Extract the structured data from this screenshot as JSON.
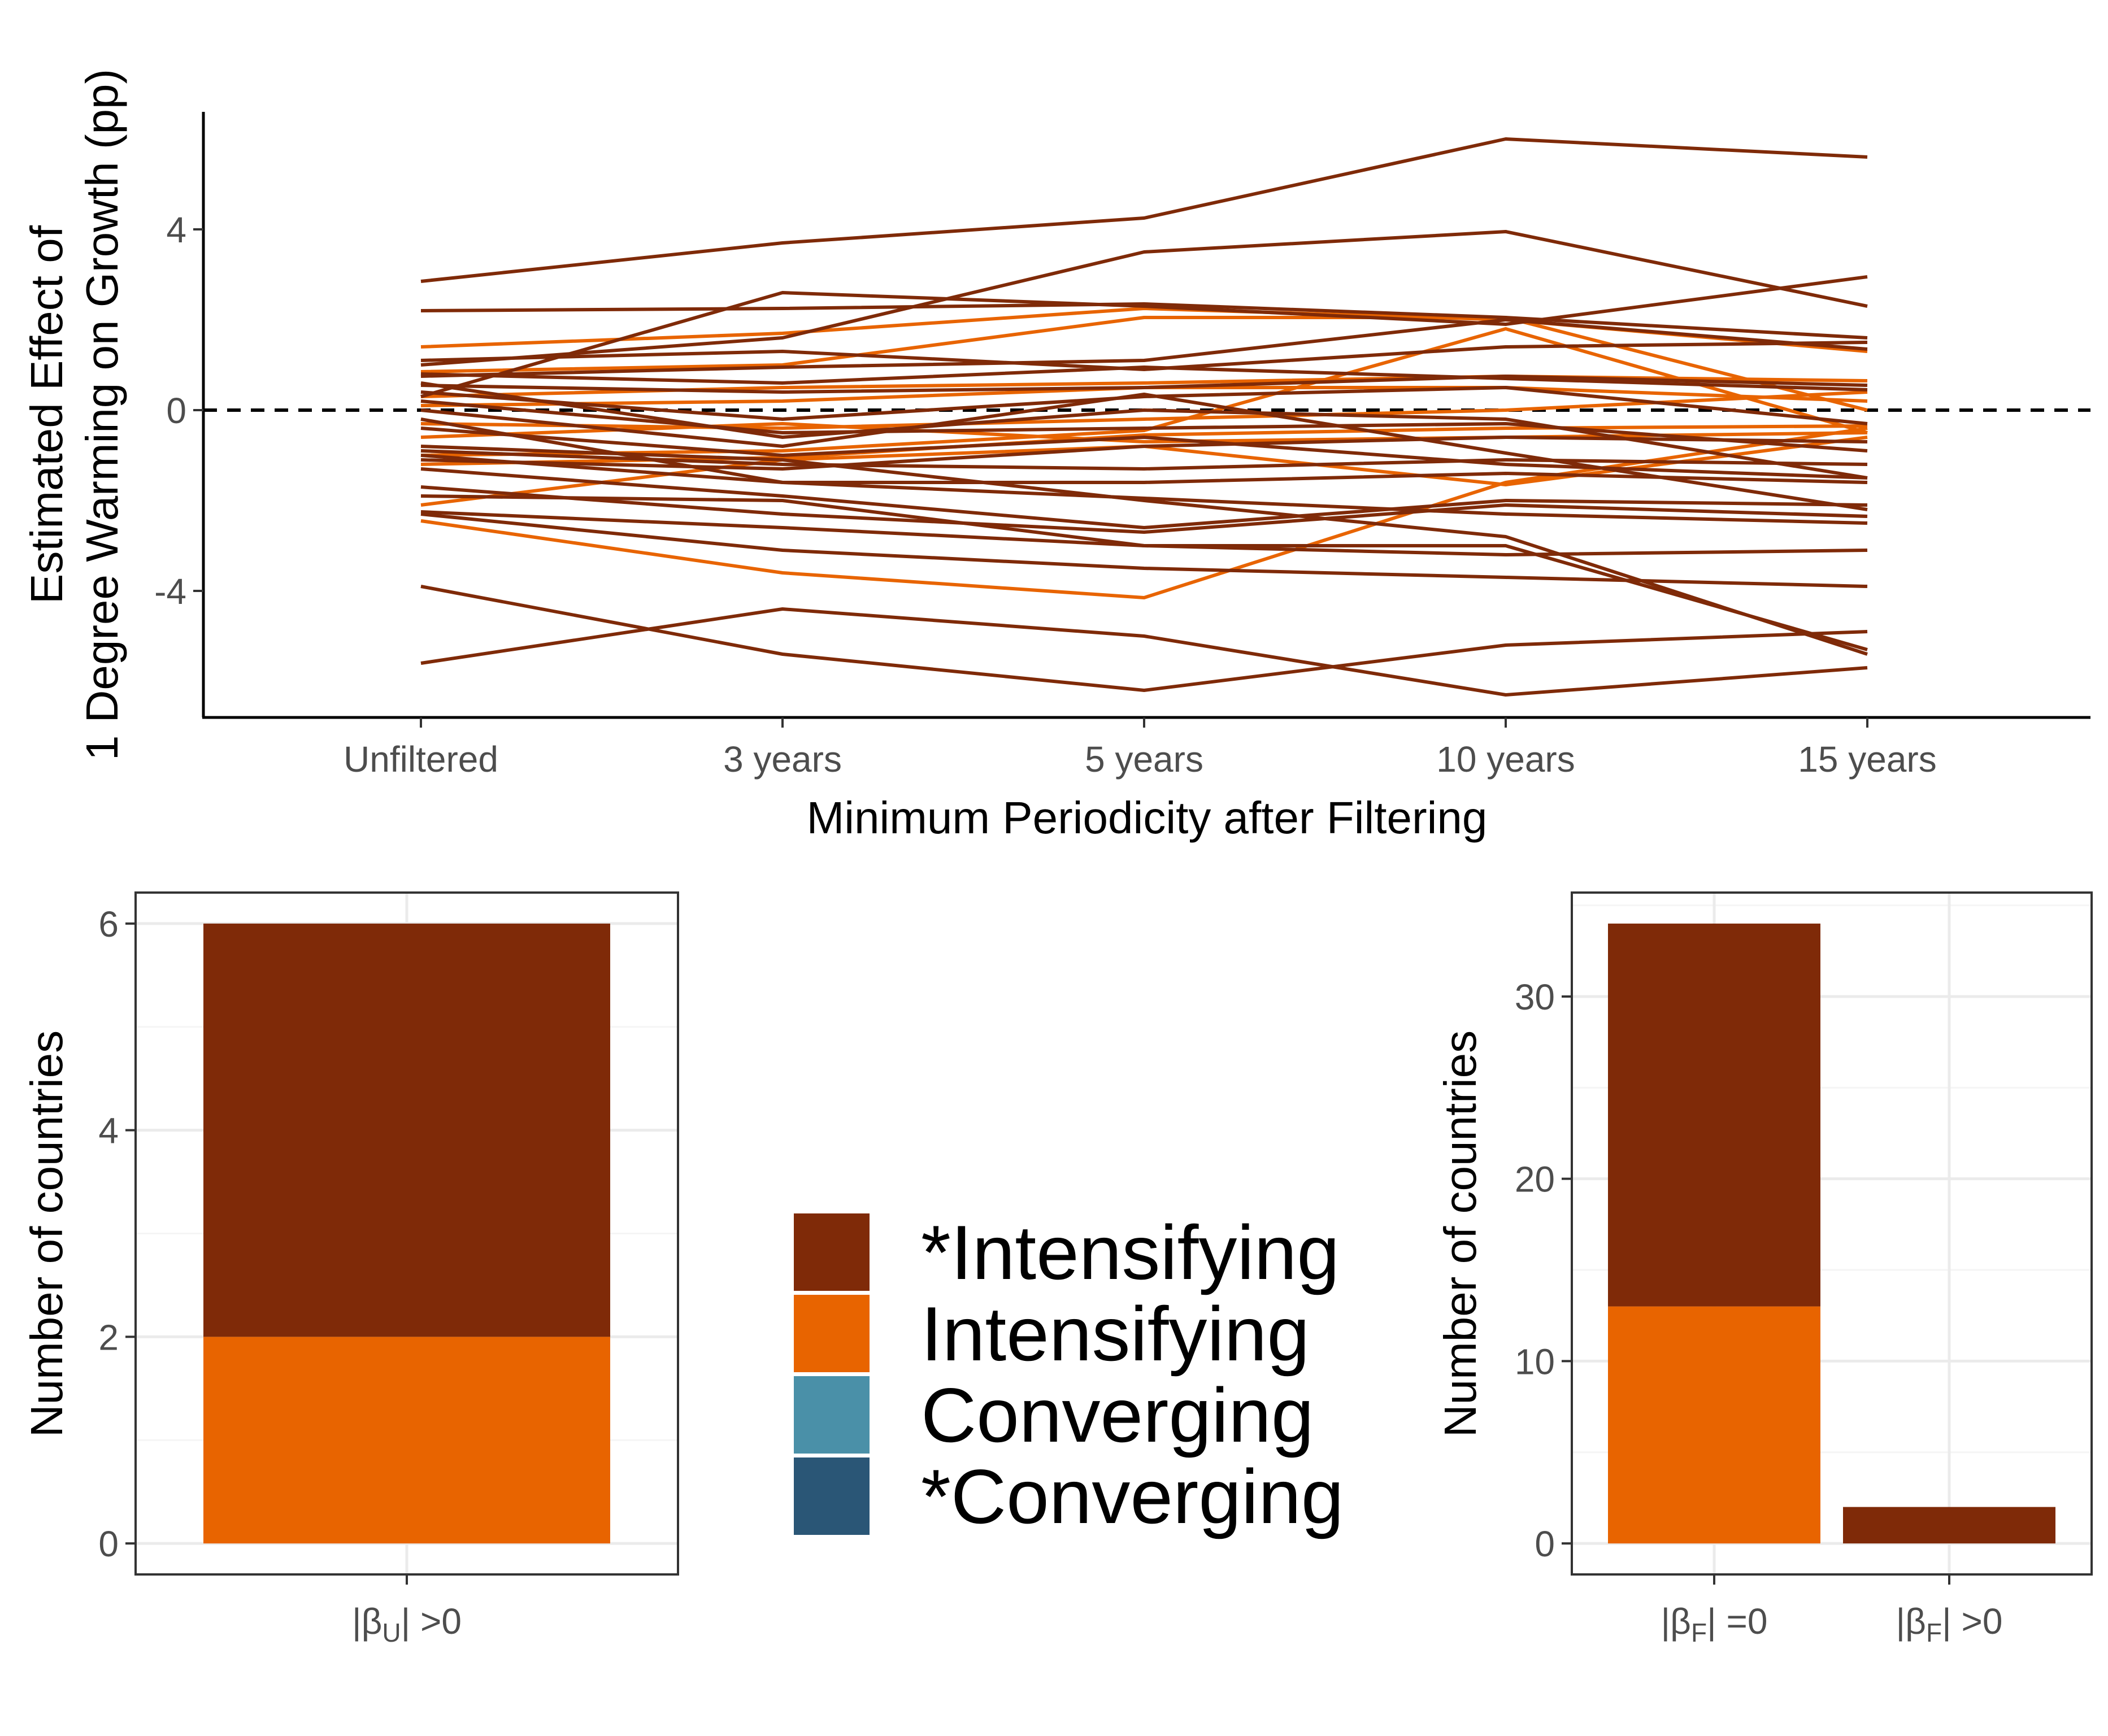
{
  "colors": {
    "sig_intensifying": "#7f2a08",
    "intensifying": "#e86400",
    "converging": "#4a90a8",
    "sig_converging": "#2a5676",
    "axis": "#000000",
    "tick": "#4d4d4d",
    "panel_border": "#333333",
    "grid_major": "#ebebeb",
    "grid_minor": "#f5f5f5"
  },
  "chart_data": [
    {
      "type": "line",
      "x": [
        "Unfiltered",
        "3 years",
        "5 years",
        "10 years",
        "15 years"
      ],
      "xlabel": "Minimum Periodicity after Filtering",
      "ylabel_line1": "Estimated Effect of",
      "ylabel_line2": "1 Degree Warming on Growth (pp)",
      "ylim": [
        -6.8,
        6.6
      ],
      "yticks": [
        -4,
        0,
        4
      ],
      "yticklabels": [
        "-4",
        "0",
        "4"
      ],
      "reference_line": 0,
      "grid": false,
      "series": [
        {
          "group": "sig_intensifying",
          "values": [
            2.85,
            3.7,
            4.25,
            6.0,
            5.6
          ]
        },
        {
          "group": "sig_intensifying",
          "values": [
            1.0,
            1.6,
            3.5,
            3.95,
            2.3
          ]
        },
        {
          "group": "sig_intensifying",
          "values": [
            2.2,
            2.25,
            2.35,
            2.05,
            1.6
          ]
        },
        {
          "group": "sig_intensifying",
          "values": [
            0.3,
            2.6,
            2.3,
            1.9,
            2.95
          ]
        },
        {
          "group": "sig_intensifying",
          "values": [
            0.75,
            0.95,
            1.1,
            2.0,
            1.35
          ]
        },
        {
          "group": "sig_intensifying",
          "values": [
            1.1,
            1.3,
            0.9,
            1.4,
            1.5
          ]
        },
        {
          "group": "sig_intensifying",
          "values": [
            0.8,
            0.6,
            0.95,
            0.7,
            0.45
          ]
        },
        {
          "group": "sig_intensifying",
          "values": [
            0.55,
            0.4,
            0.5,
            0.75,
            0.55
          ]
        },
        {
          "group": "sig_intensifying",
          "values": [
            0.4,
            -0.2,
            0.3,
            0.5,
            -0.3
          ]
        },
        {
          "group": "sig_intensifying",
          "values": [
            0.6,
            -0.6,
            0.0,
            -0.2,
            -1.5
          ]
        },
        {
          "group": "sig_intensifying",
          "values": [
            0.2,
            -0.5,
            -0.4,
            -0.3,
            -0.9
          ]
        },
        {
          "group": "sig_intensifying",
          "values": [
            0.0,
            -0.8,
            0.35,
            -0.95,
            -2.2
          ]
        },
        {
          "group": "sig_intensifying",
          "values": [
            -0.4,
            -1.0,
            -0.6,
            -1.2,
            -1.5
          ]
        },
        {
          "group": "sig_intensifying",
          "values": [
            -0.9,
            -1.2,
            -1.3,
            -1.1,
            -1.2
          ]
        },
        {
          "group": "sig_intensifying",
          "values": [
            -1.0,
            -1.6,
            -1.6,
            -1.4,
            -1.6
          ]
        },
        {
          "group": "sig_intensifying",
          "values": [
            -0.2,
            -1.6,
            -1.95,
            -2.3,
            -2.5
          ]
        },
        {
          "group": "sig_intensifying",
          "values": [
            -1.3,
            -1.9,
            -2.6,
            -2.0,
            -2.1
          ]
        },
        {
          "group": "sig_intensifying",
          "values": [
            -0.8,
            -1.1,
            -2.0,
            -2.8,
            -5.4
          ]
        },
        {
          "group": "sig_intensifying",
          "values": [
            -1.7,
            -2.3,
            -2.7,
            -2.1,
            -2.35
          ]
        },
        {
          "group": "sig_intensifying",
          "values": [
            -1.9,
            -2.0,
            -3.0,
            -3.0,
            -5.3
          ]
        },
        {
          "group": "sig_intensifying",
          "values": [
            -2.3,
            -3.1,
            -3.5,
            -3.7,
            -3.9
          ]
        },
        {
          "group": "sig_intensifying",
          "values": [
            -2.25,
            -2.6,
            -3.0,
            -3.2,
            -3.1
          ]
        },
        {
          "group": "sig_intensifying",
          "values": [
            -3.9,
            -5.4,
            -6.2,
            -5.2,
            -4.9
          ]
        },
        {
          "group": "sig_intensifying",
          "values": [
            -5.6,
            -4.4,
            -5.0,
            -6.3,
            -5.7
          ]
        },
        {
          "group": "sig_intensifying",
          "values": [
            -1.1,
            -1.3,
            -0.8,
            -0.6,
            -0.7
          ]
        },
        {
          "group": "intensifying",
          "values": [
            1.4,
            1.7,
            2.25,
            2.0,
            1.3
          ]
        },
        {
          "group": "intensifying",
          "values": [
            0.85,
            1.0,
            2.05,
            2.05,
            0.0
          ]
        },
        {
          "group": "intensifying",
          "values": [
            0.3,
            0.5,
            0.6,
            0.75,
            0.65
          ]
        },
        {
          "group": "intensifying",
          "values": [
            0.1,
            0.2,
            0.5,
            0.5,
            0.2
          ]
        },
        {
          "group": "intensifying",
          "values": [
            -0.3,
            -0.4,
            -0.2,
            0.0,
            0.4
          ]
        },
        {
          "group": "intensifying",
          "values": [
            -0.6,
            -0.3,
            -0.7,
            -0.6,
            -0.5
          ]
        },
        {
          "group": "intensifying",
          "values": [
            -1.0,
            -0.9,
            -0.45,
            1.8,
            -0.5
          ]
        },
        {
          "group": "intensifying",
          "values": [
            -1.2,
            -1.05,
            -0.55,
            -0.4,
            -0.35
          ]
        },
        {
          "group": "intensifying",
          "values": [
            -2.1,
            -1.1,
            -0.8,
            -1.65,
            -0.6
          ]
        },
        {
          "group": "intensifying",
          "values": [
            -2.45,
            -3.6,
            -4.15,
            -1.6,
            -0.4
          ]
        }
      ]
    },
    {
      "type": "bar",
      "stacked": true,
      "categories": [
        "|βU| >0"
      ],
      "ylabel": "Number of countries",
      "ylim": [
        -0.3,
        6.3
      ],
      "yticks": [
        0,
        2,
        4,
        6
      ],
      "yticklabels": [
        "0",
        "2",
        "4",
        "6"
      ],
      "series": [
        {
          "name": "Intensifying",
          "values": [
            2
          ]
        },
        {
          "name": "*Intensifying",
          "values": [
            4
          ]
        }
      ]
    },
    {
      "type": "bar",
      "stacked": true,
      "categories": [
        "|βF| =0",
        "|βF| >0"
      ],
      "ylabel": "Number of countries",
      "ylim": [
        -1.7,
        35.7
      ],
      "yticks": [
        0,
        10,
        20,
        30
      ],
      "yticklabels": [
        "0",
        "10",
        "20",
        "30"
      ],
      "series": [
        {
          "name": "Intensifying",
          "values": [
            13,
            0
          ]
        },
        {
          "name": "*Intensifying",
          "values": [
            21,
            2
          ]
        }
      ]
    }
  ],
  "panel_b": {
    "tick_pre": "|β",
    "tick_sub": "U",
    "tick_post": "| >0"
  },
  "panel_c": {
    "tick1_pre": "|β",
    "tick1_sub": "F",
    "tick1_post": "| =0",
    "tick2_pre": "|β",
    "tick2_sub": "F",
    "tick2_post": "| >0"
  },
  "legend": {
    "items": [
      {
        "label": "*Intensifying",
        "color": "#7f2a08"
      },
      {
        "label": "Intensifying",
        "color": "#e86400"
      },
      {
        "label": "Converging",
        "color": "#4a90a8"
      },
      {
        "label": "*Converging",
        "color": "#2a5676"
      }
    ]
  }
}
